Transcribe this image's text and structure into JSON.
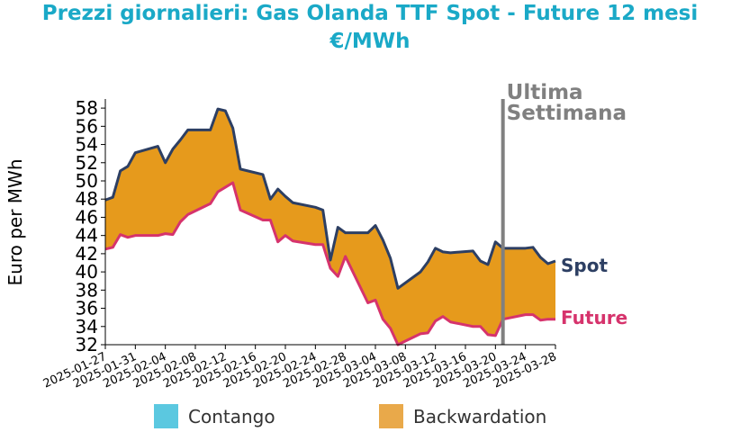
{
  "chart_data": {
    "type": "area",
    "title_line1": "Prezzi giornalieri: Gas Olanda TTF Spot - Future 12 mesi",
    "title_line2": "€/MWh",
    "ylabel": "Euro per MWh",
    "ylim": [
      32,
      59
    ],
    "yticks": [
      32,
      34,
      36,
      38,
      40,
      42,
      44,
      46,
      48,
      50,
      52,
      54,
      56,
      58
    ],
    "x_start": "2025-01-27",
    "x_end": "2025-03-28",
    "xticks": [
      "2025-01-27",
      "2025-01-31",
      "2025-02-04",
      "2025-02-08",
      "2025-02-12",
      "2025-02-16",
      "2025-02-20",
      "2025-02-24",
      "2025-02-28",
      "2025-03-04",
      "2025-03-08",
      "2025-03-12",
      "2025-03-16",
      "2025-03-20",
      "2025-03-24",
      "2025-03-28"
    ],
    "marker_date": "2025-03-21",
    "marker_label_line1": "Ultima",
    "marker_label_line2": "Settimana",
    "dates": [
      "2025-01-27",
      "2025-01-28",
      "2025-01-29",
      "2025-01-30",
      "2025-01-31",
      "2025-02-03",
      "2025-02-04",
      "2025-02-05",
      "2025-02-06",
      "2025-02-07",
      "2025-02-10",
      "2025-02-11",
      "2025-02-12",
      "2025-02-13",
      "2025-02-14",
      "2025-02-17",
      "2025-02-18",
      "2025-02-19",
      "2025-02-20",
      "2025-02-21",
      "2025-02-24",
      "2025-02-25",
      "2025-02-26",
      "2025-02-27",
      "2025-02-28",
      "2025-03-03",
      "2025-03-04",
      "2025-03-05",
      "2025-03-06",
      "2025-03-07",
      "2025-03-10",
      "2025-03-11",
      "2025-03-12",
      "2025-03-13",
      "2025-03-14",
      "2025-03-17",
      "2025-03-18",
      "2025-03-19",
      "2025-03-20",
      "2025-03-21",
      "2025-03-24",
      "2025-03-25",
      "2025-03-26",
      "2025-03-27",
      "2025-03-28"
    ],
    "series": [
      {
        "name": "Spot",
        "color": "#2d3f63",
        "values": [
          47.9,
          48.2,
          51.1,
          51.6,
          53.1,
          53.8,
          52.0,
          53.5,
          54.5,
          55.6,
          55.6,
          57.9,
          57.7,
          55.8,
          51.3,
          50.7,
          48.0,
          49.1,
          48.3,
          47.6,
          47.1,
          46.8,
          41.3,
          44.9,
          44.3,
          44.3,
          45.1,
          43.5,
          41.5,
          38.2,
          40.0,
          41.1,
          42.6,
          42.2,
          42.1,
          42.3,
          41.2,
          40.8,
          43.3,
          42.6,
          42.6,
          42.7,
          41.6,
          40.9,
          41.2
        ]
      },
      {
        "name": "Future",
        "color": "#d6336c",
        "values": [
          42.5,
          42.7,
          44.1,
          43.8,
          44.0,
          44.0,
          44.2,
          44.1,
          45.5,
          46.3,
          47.5,
          48.8,
          49.3,
          49.8,
          46.8,
          45.7,
          45.7,
          43.3,
          44.0,
          43.4,
          43.0,
          43.0,
          40.4,
          39.5,
          41.7,
          36.6,
          36.9,
          34.8,
          33.8,
          32.0,
          33.2,
          33.3,
          34.6,
          35.1,
          34.5,
          34.0,
          34.0,
          33.1,
          33.0,
          34.8,
          35.3,
          35.3,
          34.7,
          34.8,
          34.8
        ]
      }
    ],
    "legend": [
      {
        "label": "Contango",
        "color": "#5bc8e0"
      },
      {
        "label": "Backwardation",
        "color": "#e9a94a"
      }
    ],
    "fill_color": "#e69a1c",
    "marker_color": "#808080",
    "title_color": "#1aa9c7",
    "grid": false
  }
}
